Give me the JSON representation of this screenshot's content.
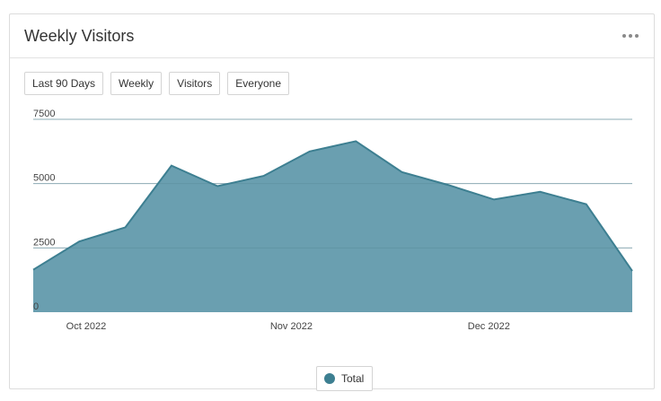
{
  "widget": {
    "title": "Weekly Visitors",
    "menu_icon": "more-horizontal-icon"
  },
  "filters": [
    "Last 90 Days",
    "Weekly",
    "Visitors",
    "Everyone"
  ],
  "legend": {
    "label": "Total",
    "color": "#3d7f91"
  },
  "chart_data": {
    "type": "area",
    "title": "",
    "xlabel": "",
    "ylabel": "",
    "ylim": [
      0,
      7500
    ],
    "y_ticks": [
      0,
      2500,
      5000,
      7500
    ],
    "x_tick_labels": [
      "Oct 2022",
      "Nov 2022",
      "Dec 2022"
    ],
    "grid": true,
    "legend_position": "bottom",
    "fill_color": "#6a9fb0",
    "line_color": "#3d7f91",
    "x": [
      "2022-09-26",
      "2022-10-03",
      "2022-10-10",
      "2022-10-17",
      "2022-10-24",
      "2022-10-31",
      "2022-11-07",
      "2022-11-14",
      "2022-11-21",
      "2022-11-28",
      "2022-12-05",
      "2022-12-12",
      "2022-12-19",
      "2022-12-26"
    ],
    "series": [
      {
        "name": "Total",
        "values": [
          1650,
          2750,
          3300,
          5700,
          4900,
          5300,
          6250,
          6650,
          5450,
          4950,
          4380,
          4680,
          4200,
          1600
        ]
      }
    ]
  }
}
